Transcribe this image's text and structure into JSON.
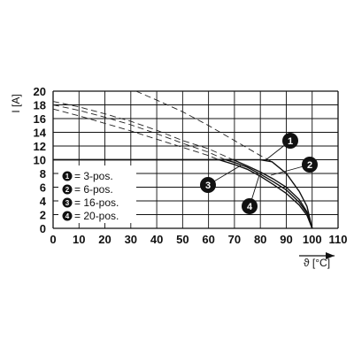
{
  "chart_data": {
    "type": "line",
    "xlabel": "ϑ [°C]",
    "ylabel": "I [A]",
    "xlim": [
      0,
      110
    ],
    "ylim": [
      0,
      20
    ],
    "xticks": [
      "0",
      "10",
      "20",
      "30",
      "40",
      "50",
      "60",
      "70",
      "80",
      "90",
      "100",
      "110"
    ],
    "yticks": [
      "0",
      "2",
      "4",
      "6",
      "8",
      "10",
      "12",
      "14",
      "16",
      "18",
      "20"
    ],
    "grid": true,
    "legend_position": "left",
    "current_limit": 10,
    "series": [
      {
        "badge": "1",
        "legend_label": "= 3-pos.",
        "dashed": {
          "x": [
            32,
            40,
            50,
            60,
            70,
            80,
            84.5
          ],
          "y": [
            20,
            18.7,
            17,
            15,
            12.8,
            10.6,
            9.7
          ]
        },
        "solid": {
          "x": [
            0,
            50,
            60,
            70,
            80,
            84.5,
            90,
            95,
            98,
            100
          ],
          "y": [
            10,
            10,
            10,
            10,
            10,
            9.7,
            8.0,
            5.4,
            3.2,
            0
          ]
        }
      },
      {
        "badge": "2",
        "legend_label": "= 6-pos.",
        "dashed": {
          "x": [
            0,
            10,
            20,
            30,
            40,
            50,
            60,
            69.5
          ],
          "y": [
            18.5,
            17.7,
            16.7,
            15.6,
            14.3,
            12.8,
            11.6,
            10
          ]
        },
        "solid": {
          "x": [
            69.5,
            75,
            80,
            85,
            90,
            95,
            98,
            100
          ],
          "y": [
            10,
            9.1,
            8.2,
            7.2,
            6.0,
            4.2,
            2.4,
            0
          ]
        }
      },
      {
        "badge": "3",
        "legend_label": "= 16-pos.",
        "dashed": {
          "x": [
            0,
            10,
            20,
            30,
            40,
            50,
            60,
            66.5
          ],
          "y": [
            18.0,
            17.2,
            16.2,
            15.1,
            13.8,
            12.4,
            11.1,
            10
          ]
        },
        "solid": {
          "x": [
            66.5,
            70,
            75,
            80,
            85,
            90,
            95,
            98,
            100
          ],
          "y": [
            10,
            9.6,
            8.9,
            7.9,
            6.8,
            5.6,
            3.8,
            2.2,
            0
          ]
        }
      },
      {
        "badge": "4",
        "legend_label": "= 20-pos.",
        "dashed": {
          "x": [
            0,
            10,
            20,
            30,
            40,
            50,
            60,
            64
          ],
          "y": [
            17.4,
            16.4,
            15.3,
            14.2,
            13.0,
            11.8,
            10.6,
            10
          ]
        },
        "solid": {
          "x": [
            64,
            70,
            75,
            80,
            85,
            90,
            95,
            98,
            100
          ],
          "y": [
            10,
            9.3,
            8.6,
            7.6,
            6.4,
            5.1,
            3.4,
            1.9,
            0
          ]
        }
      }
    ]
  }
}
